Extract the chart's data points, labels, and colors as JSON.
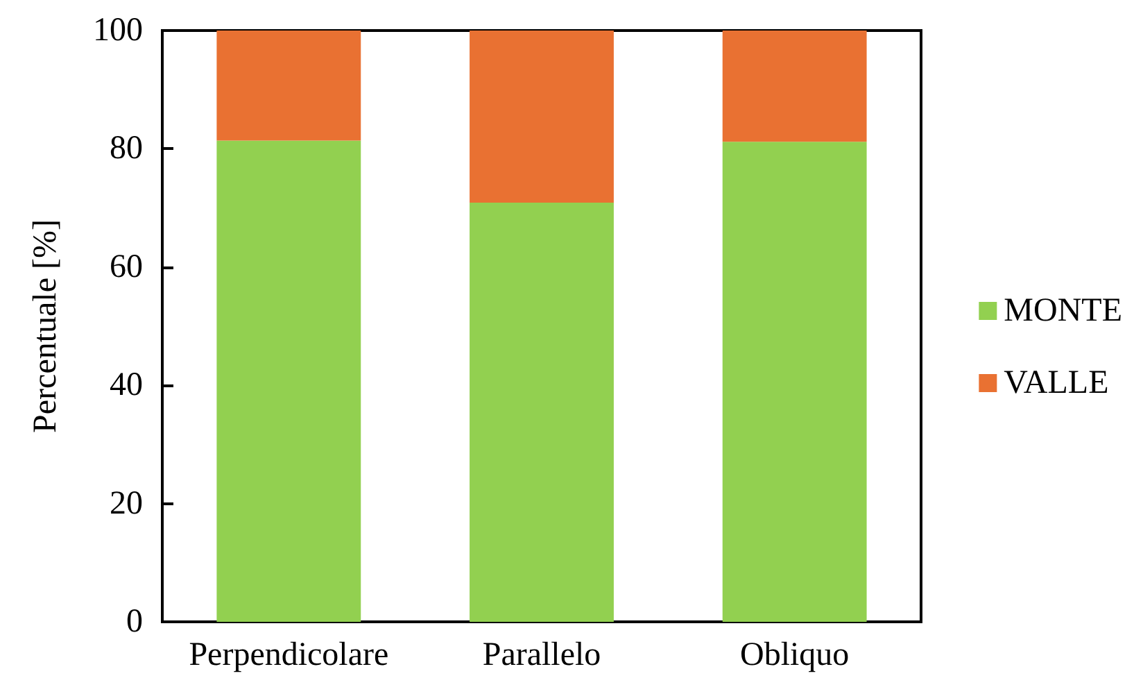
{
  "chart_data": {
    "type": "bar",
    "stacked": true,
    "ylabel": "Percentuale [%]",
    "categories": [
      "Perpendicolare",
      "Parallelo",
      "Obliquo"
    ],
    "series": [
      {
        "name": "MONTE",
        "color": "#92d050",
        "values": [
          81.4,
          70.9,
          81.2
        ]
      },
      {
        "name": "VALLE",
        "color": "#e97132",
        "values": [
          18.6,
          29.1,
          18.8
        ]
      }
    ],
    "ylim": [
      0,
      100
    ],
    "yticks": [
      0,
      20,
      40,
      60,
      80,
      100
    ],
    "grid": false,
    "legend": "right"
  }
}
